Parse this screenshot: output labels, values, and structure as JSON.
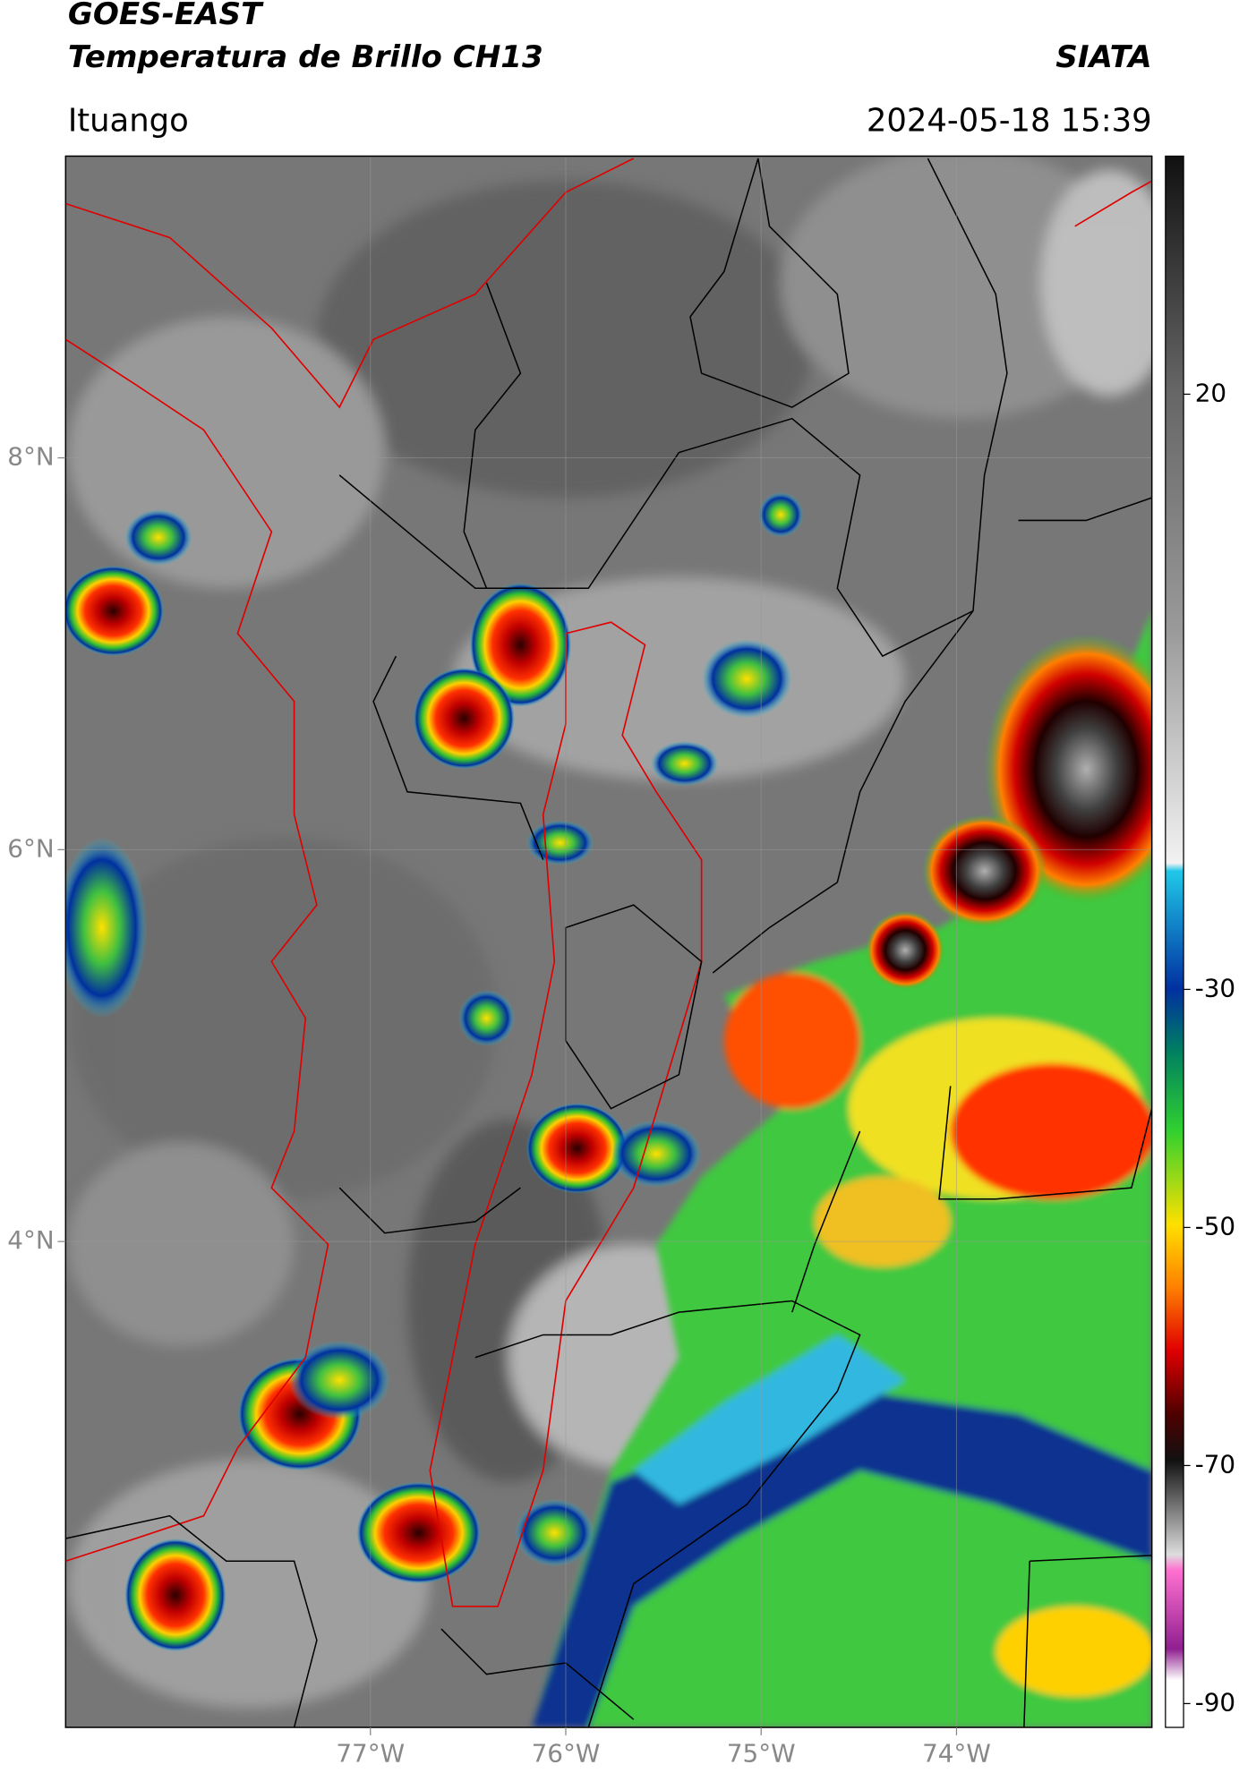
{
  "header": {
    "title": "GOES-EAST",
    "subtitle": "Temperatura de Brillo CH13",
    "agency": "SIATA",
    "location": "Ituango",
    "datetime": "2024-05-18 15:39"
  },
  "map": {
    "xlim": [
      -78.56,
      -73.0
    ],
    "ylim": [
      1.52,
      9.54
    ],
    "xticks": [
      {
        "value": -77,
        "label": "77°W"
      },
      {
        "value": -76,
        "label": "76°W"
      },
      {
        "value": -75,
        "label": "75°W"
      },
      {
        "value": -74,
        "label": "74°W"
      }
    ],
    "yticks": [
      {
        "value": 4,
        "label": "4°N"
      },
      {
        "value": 6,
        "label": "6°N"
      },
      {
        "value": 8,
        "label": "8°N"
      }
    ]
  },
  "colorbar": {
    "lim": [
      -92,
      40
    ],
    "ticks": [
      -90,
      -70,
      -50,
      -30,
      20
    ]
  }
}
